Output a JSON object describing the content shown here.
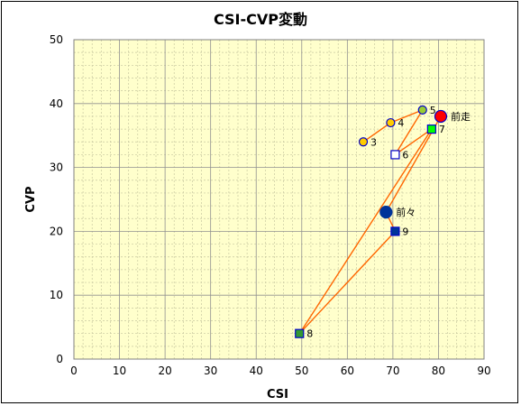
{
  "chart_data": {
    "type": "scatter",
    "title": "CSI-CVP変動",
    "xlabel": "CSI",
    "ylabel": "CVP",
    "xlim": [
      0,
      90
    ],
    "ylim": [
      0,
      50
    ],
    "xticks": [
      0,
      10,
      20,
      30,
      40,
      50,
      60,
      70,
      80,
      90
    ],
    "yticks": [
      0,
      10,
      20,
      30,
      40,
      50
    ],
    "grid": true,
    "plot_background": "#ffffcc",
    "line_color": "#ff6600",
    "points": [
      {
        "label": "3",
        "x": 63.5,
        "y": 34,
        "marker": "circle",
        "fill": "#ffcc00",
        "stroke": "#0000cc",
        "size": "small"
      },
      {
        "label": "4",
        "x": 69.5,
        "y": 37,
        "marker": "circle",
        "fill": "#ffcc00",
        "stroke": "#0000cc",
        "size": "small"
      },
      {
        "label": "5",
        "x": 76.5,
        "y": 39,
        "marker": "circle",
        "fill": "#99cc33",
        "stroke": "#0000cc",
        "size": "small"
      },
      {
        "label": "6",
        "x": 70.5,
        "y": 32,
        "marker": "square",
        "fill": "#ffffff",
        "stroke": "#0000cc",
        "size": "small"
      },
      {
        "label": "7",
        "x": 78.5,
        "y": 36,
        "marker": "square",
        "fill": "#00ff00",
        "stroke": "#0000cc",
        "size": "small"
      },
      {
        "label": "8",
        "x": 49.5,
        "y": 4,
        "marker": "square",
        "fill": "#339933",
        "stroke": "#0000cc",
        "size": "small"
      },
      {
        "label": "9",
        "x": 70.5,
        "y": 20,
        "marker": "square",
        "fill": "#003399",
        "stroke": "#0000cc",
        "size": "small"
      },
      {
        "label": "前走",
        "x": 80.5,
        "y": 38,
        "marker": "circle",
        "fill": "#ff0000",
        "stroke": "#0000cc",
        "size": "large"
      },
      {
        "label": "前々",
        "x": 68.5,
        "y": 23,
        "marker": "circle",
        "fill": "#003399",
        "stroke": "#003399",
        "size": "large"
      }
    ],
    "path_order": [
      "3",
      "4",
      "5",
      "6",
      "7",
      "8",
      "9",
      "前々",
      "前走"
    ]
  }
}
